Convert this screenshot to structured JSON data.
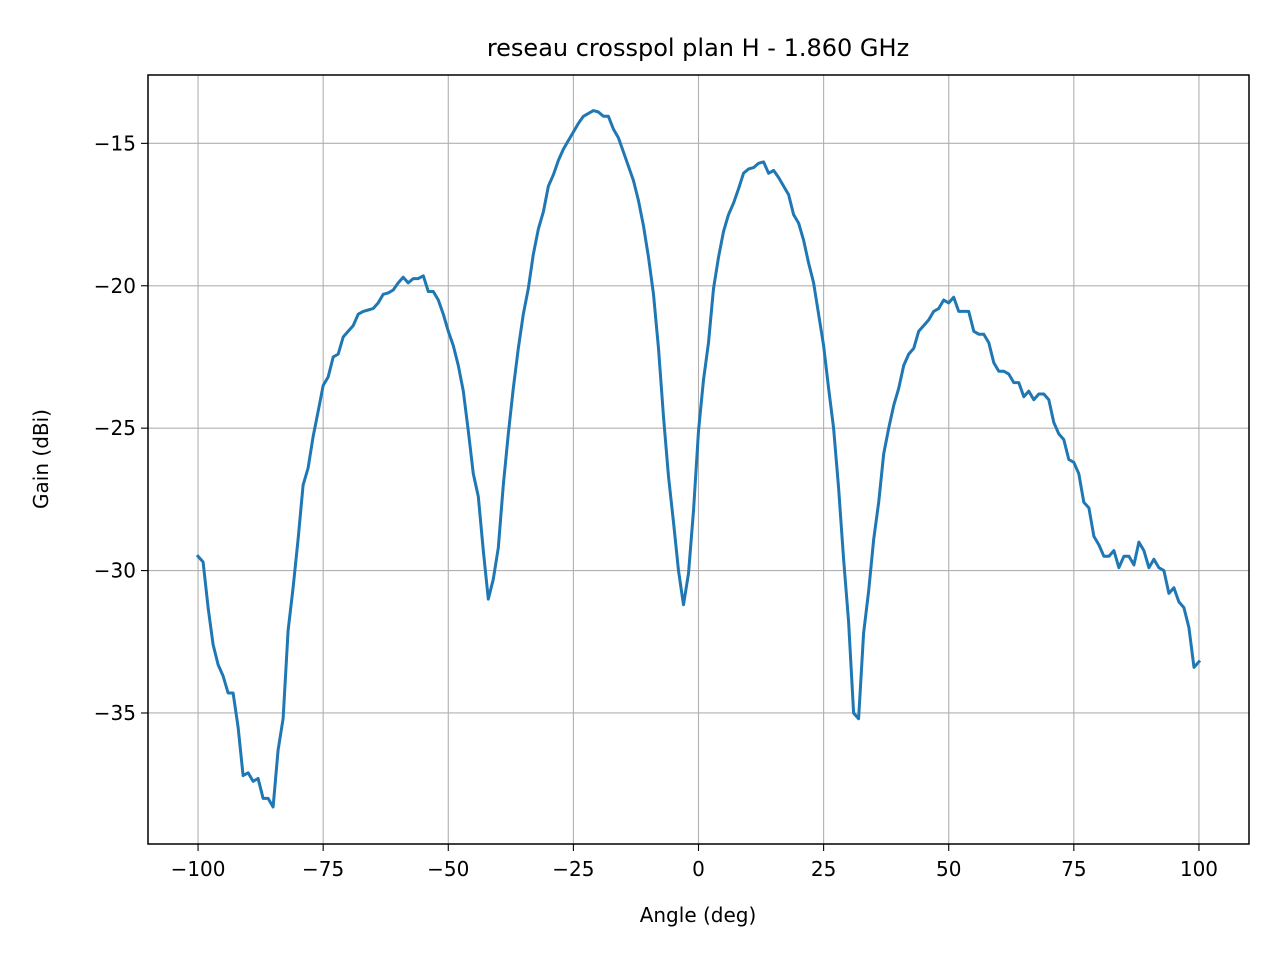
{
  "chart_data": {
    "type": "line",
    "title": "reseau crosspol plan H - 1.860 GHz",
    "xlabel": "Angle (deg)",
    "ylabel": "Gain (dBi)",
    "xlim": [
      -110,
      110
    ],
    "ylim": [
      -39.6,
      -12.6
    ],
    "grid": true,
    "xticks": [
      -100,
      -75,
      -50,
      -25,
      0,
      25,
      50,
      75,
      100
    ],
    "yticks": [
      -15,
      -20,
      -25,
      -30,
      -35
    ],
    "xtick_labels": [
      "−100",
      "−75",
      "−50",
      "−25",
      "0",
      "25",
      "50",
      "75",
      "100"
    ],
    "ytick_labels": [
      "−15",
      "−20",
      "−25",
      "−30",
      "−35"
    ],
    "series": [
      {
        "color": "#1f77b4",
        "points": [
          [
            -100,
            -29.5
          ],
          [
            -99,
            -29.7
          ],
          [
            -98,
            -31.3
          ],
          [
            -97,
            -32.6
          ],
          [
            -96,
            -33.3
          ],
          [
            -95,
            -33.7
          ],
          [
            -94,
            -34.3
          ],
          [
            -93,
            -34.3
          ],
          [
            -92,
            -35.5
          ],
          [
            -91,
            -37.2
          ],
          [
            -90,
            -37.1
          ],
          [
            -89,
            -37.4
          ],
          [
            -88,
            -37.3
          ],
          [
            -87,
            -38.0
          ],
          [
            -86,
            -38.0
          ],
          [
            -85,
            -38.3
          ],
          [
            -84,
            -36.3
          ],
          [
            -83,
            -35.2
          ],
          [
            -82,
            -32.1
          ],
          [
            -81,
            -30.6
          ],
          [
            -80,
            -28.9
          ],
          [
            -79,
            -27.0
          ],
          [
            -78,
            -26.4
          ],
          [
            -77,
            -25.3
          ],
          [
            -76,
            -24.4
          ],
          [
            -75,
            -23.5
          ],
          [
            -74,
            -23.2
          ],
          [
            -73,
            -22.5
          ],
          [
            -72,
            -22.4
          ],
          [
            -71,
            -21.8
          ],
          [
            -70,
            -21.6
          ],
          [
            -69,
            -21.4
          ],
          [
            -68,
            -21.0
          ],
          [
            -67,
            -20.9
          ],
          [
            -66,
            -20.85
          ],
          [
            -65,
            -20.8
          ],
          [
            -64,
            -20.6
          ],
          [
            -63,
            -20.3
          ],
          [
            -62,
            -20.25
          ],
          [
            -61,
            -20.15
          ],
          [
            -60,
            -19.9
          ],
          [
            -59,
            -19.7
          ],
          [
            -58,
            -19.9
          ],
          [
            -57,
            -19.75
          ],
          [
            -56,
            -19.75
          ],
          [
            -55,
            -19.65
          ],
          [
            -54,
            -20.2
          ],
          [
            -53,
            -20.2
          ],
          [
            -52,
            -20.5
          ],
          [
            -51,
            -21.0
          ],
          [
            -50,
            -21.6
          ],
          [
            -49,
            -22.1
          ],
          [
            -48,
            -22.8
          ],
          [
            -47,
            -23.7
          ],
          [
            -46,
            -25.1
          ],
          [
            -45,
            -26.6
          ],
          [
            -44,
            -27.4
          ],
          [
            -43,
            -29.3
          ],
          [
            -42,
            -31.0
          ],
          [
            -41,
            -30.3
          ],
          [
            -40,
            -29.2
          ],
          [
            -39,
            -27.0
          ],
          [
            -38,
            -25.2
          ],
          [
            -37,
            -23.6
          ],
          [
            -36,
            -22.2
          ],
          [
            -35,
            -21.0
          ],
          [
            -34,
            -20.1
          ],
          [
            -33,
            -18.9
          ],
          [
            -32,
            -18.0
          ],
          [
            -31,
            -17.4
          ],
          [
            -30,
            -16.5
          ],
          [
            -29,
            -16.1
          ],
          [
            -28,
            -15.6
          ],
          [
            -27,
            -15.2
          ],
          [
            -26,
            -14.9
          ],
          [
            -25,
            -14.6
          ],
          [
            -24,
            -14.3
          ],
          [
            -23,
            -14.05
          ],
          [
            -22,
            -13.95
          ],
          [
            -21,
            -13.85
          ],
          [
            -20,
            -13.9
          ],
          [
            -19,
            -14.05
          ],
          [
            -18,
            -14.05
          ],
          [
            -17,
            -14.5
          ],
          [
            -16,
            -14.8
          ],
          [
            -15,
            -15.3
          ],
          [
            -14,
            -15.8
          ],
          [
            -13,
            -16.3
          ],
          [
            -12,
            -17.0
          ],
          [
            -11,
            -17.9
          ],
          [
            -10,
            -19.0
          ],
          [
            -9,
            -20.3
          ],
          [
            -8,
            -22.2
          ],
          [
            -7,
            -24.6
          ],
          [
            -6,
            -26.7
          ],
          [
            -5,
            -28.3
          ],
          [
            -4,
            -30.0
          ],
          [
            -3,
            -31.2
          ],
          [
            -2,
            -30.1
          ],
          [
            -1,
            -27.9
          ],
          [
            0,
            -25.1
          ],
          [
            1,
            -23.3
          ],
          [
            2,
            -22.0
          ],
          [
            3,
            -20.1
          ],
          [
            4,
            -19.0
          ],
          [
            5,
            -18.1
          ],
          [
            6,
            -17.5
          ],
          [
            7,
            -17.1
          ],
          [
            8,
            -16.6
          ],
          [
            9,
            -16.05
          ],
          [
            10,
            -15.9
          ],
          [
            11,
            -15.85
          ],
          [
            12,
            -15.7
          ],
          [
            13,
            -15.65
          ],
          [
            14,
            -16.05
          ],
          [
            15,
            -15.95
          ],
          [
            16,
            -16.2
          ],
          [
            17,
            -16.5
          ],
          [
            18,
            -16.8
          ],
          [
            19,
            -17.5
          ],
          [
            20,
            -17.8
          ],
          [
            21,
            -18.4
          ],
          [
            22,
            -19.2
          ],
          [
            23,
            -19.9
          ],
          [
            24,
            -21.0
          ],
          [
            25,
            -22.1
          ],
          [
            26,
            -23.6
          ],
          [
            27,
            -25.0
          ],
          [
            28,
            -27.1
          ],
          [
            29,
            -29.6
          ],
          [
            30,
            -31.8
          ],
          [
            31,
            -35.0
          ],
          [
            32,
            -35.2
          ],
          [
            33,
            -32.2
          ],
          [
            34,
            -30.7
          ],
          [
            35,
            -28.9
          ],
          [
            36,
            -27.6
          ],
          [
            37,
            -25.9
          ],
          [
            38,
            -25.0
          ],
          [
            39,
            -24.2
          ],
          [
            40,
            -23.6
          ],
          [
            41,
            -22.8
          ],
          [
            42,
            -22.4
          ],
          [
            43,
            -22.2
          ],
          [
            44,
            -21.6
          ],
          [
            45,
            -21.4
          ],
          [
            46,
            -21.2
          ],
          [
            47,
            -20.9
          ],
          [
            48,
            -20.8
          ],
          [
            49,
            -20.5
          ],
          [
            50,
            -20.6
          ],
          [
            51,
            -20.4
          ],
          [
            52,
            -20.9
          ],
          [
            53,
            -20.9
          ],
          [
            54,
            -20.9
          ],
          [
            55,
            -21.6
          ],
          [
            56,
            -21.7
          ],
          [
            57,
            -21.7
          ],
          [
            58,
            -22.0
          ],
          [
            59,
            -22.7
          ],
          [
            60,
            -23.0
          ],
          [
            61,
            -23.0
          ],
          [
            62,
            -23.1
          ],
          [
            63,
            -23.4
          ],
          [
            64,
            -23.4
          ],
          [
            65,
            -23.9
          ],
          [
            66,
            -23.7
          ],
          [
            67,
            -24.0
          ],
          [
            68,
            -23.8
          ],
          [
            69,
            -23.8
          ],
          [
            70,
            -24.0
          ],
          [
            71,
            -24.8
          ],
          [
            72,
            -25.2
          ],
          [
            73,
            -25.4
          ],
          [
            74,
            -26.1
          ],
          [
            75,
            -26.2
          ],
          [
            76,
            -26.6
          ],
          [
            77,
            -27.6
          ],
          [
            78,
            -27.8
          ],
          [
            79,
            -28.8
          ],
          [
            80,
            -29.1
          ],
          [
            81,
            -29.5
          ],
          [
            82,
            -29.5
          ],
          [
            83,
            -29.3
          ],
          [
            84,
            -29.9
          ],
          [
            85,
            -29.5
          ],
          [
            86,
            -29.5
          ],
          [
            87,
            -29.8
          ],
          [
            88,
            -29.0
          ],
          [
            89,
            -29.3
          ],
          [
            90,
            -29.9
          ],
          [
            91,
            -29.6
          ],
          [
            92,
            -29.9
          ],
          [
            93,
            -30.0
          ],
          [
            94,
            -30.8
          ],
          [
            95,
            -30.6
          ],
          [
            96,
            -31.1
          ],
          [
            97,
            -31.3
          ],
          [
            98,
            -32.0
          ],
          [
            99,
            -33.4
          ],
          [
            100,
            -33.2
          ]
        ]
      }
    ]
  }
}
